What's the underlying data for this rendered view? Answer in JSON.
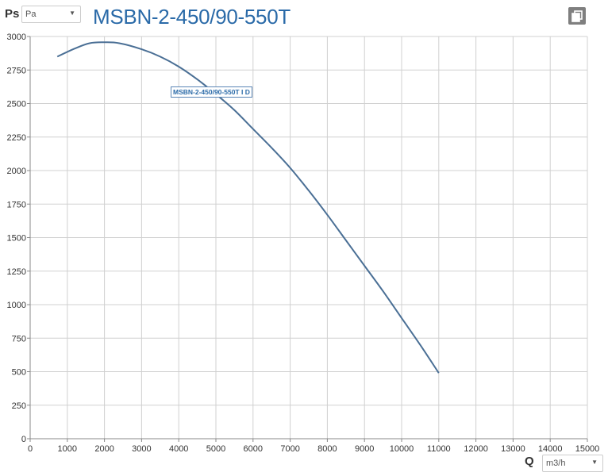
{
  "y_axis": {
    "quantity_label": "Ps",
    "unit": "Pa"
  },
  "x_axis": {
    "quantity_label": "Q",
    "unit": "m3/h"
  },
  "title": "MSBN-2-450/90-550T",
  "series_tag": "MSBN-2-450/90-550T I D",
  "toolbar": {
    "copy_icon": "copy-icon"
  },
  "colors": {
    "title": "#2a6aa8",
    "curve": "#4a6f95",
    "grid": "#d0d0d0",
    "axis": "#888888"
  },
  "chart_data": {
    "type": "line",
    "title": "MSBN-2-450/90-550T",
    "xlabel": "Q",
    "ylabel": "Ps",
    "xlim": [
      0,
      15000
    ],
    "ylim": [
      0,
      3000
    ],
    "grid": true,
    "x_ticks": [
      0,
      1000,
      2000,
      3000,
      4000,
      5000,
      6000,
      7000,
      8000,
      9000,
      10000,
      11000,
      12000,
      13000,
      14000,
      15000
    ],
    "y_ticks": [
      0,
      250,
      500,
      750,
      1000,
      1250,
      1500,
      1750,
      2000,
      2250,
      2500,
      2750,
      3000
    ],
    "series": [
      {
        "name": "MSBN-2-450/90-550T I D",
        "x": [
          730,
          1200,
          1600,
          2000,
          2400,
          3000,
          3500,
          4000,
          4500,
          5000,
          5500,
          6000,
          6500,
          7000,
          7500,
          8000,
          8500,
          9000,
          9500,
          10000,
          10500,
          11000
        ],
        "y": [
          2850,
          2910,
          2950,
          2957,
          2950,
          2905,
          2850,
          2775,
          2680,
          2570,
          2450,
          2310,
          2170,
          2020,
          1850,
          1670,
          1480,
          1290,
          1100,
          900,
          700,
          490
        ]
      }
    ]
  }
}
